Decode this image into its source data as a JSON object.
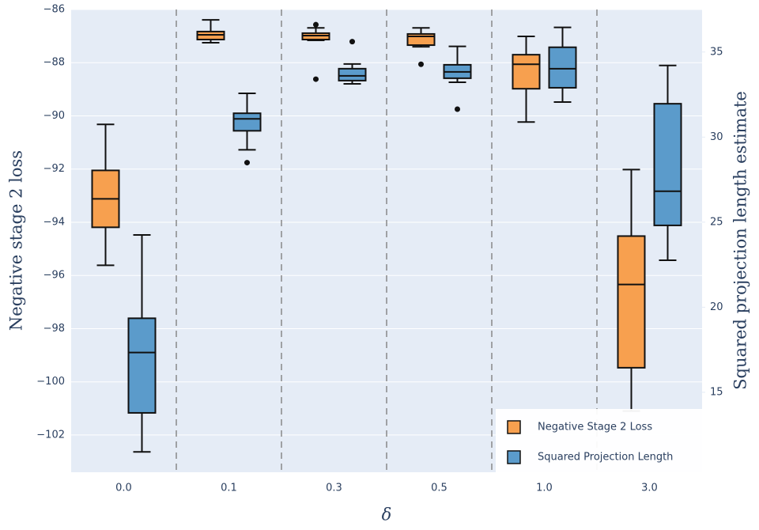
{
  "chart_data": {
    "type": "box",
    "x_label": "δ",
    "y_label": "Negative stage 2 loss",
    "y2_label": "Squared projection length estimate",
    "categories": [
      "0.0",
      "0.1",
      "0.3",
      "0.5",
      "1.0",
      "3.0"
    ],
    "ylim": [
      -103.4,
      -86
    ],
    "yticks": [
      {
        "value": -86,
        "label": "−86"
      },
      {
        "value": -88,
        "label": "−88"
      },
      {
        "value": -90,
        "label": "−90"
      },
      {
        "value": -92,
        "label": "−92"
      },
      {
        "value": -94,
        "label": "−94"
      },
      {
        "value": -96,
        "label": "−96"
      },
      {
        "value": -98,
        "label": "−98"
      },
      {
        "value": -100,
        "label": "−100"
      },
      {
        "value": -102,
        "label": "−102"
      }
    ],
    "y2lim": [
      10.3,
      37.5
    ],
    "y2ticks": [
      15,
      20,
      25,
      30,
      35
    ],
    "grid": true,
    "legend": "bottom-right",
    "series": [
      {
        "name": "Negative Stage 2 Loss",
        "color": "#f7a04f",
        "axis": "y",
        "min": [
          -95.62,
          -87.25,
          -87.16,
          -87.4,
          -90.23,
          -101.1
        ],
        "q1": [
          -94.19,
          -87.13,
          -87.13,
          -87.34,
          -88.98,
          -99.47
        ],
        "median": [
          -93.12,
          -86.95,
          -86.98,
          -87.01,
          -88.06,
          -96.34
        ],
        "q3": [
          -92.05,
          -86.83,
          -86.89,
          -86.92,
          -87.7,
          -94.52
        ],
        "max": [
          -90.32,
          -86.39,
          -86.69,
          -86.69,
          -87.01,
          -92.02
        ],
        "outliers": [
          [],
          [],
          [
            -86.57,
            -88.62
          ],
          [
            -88.06
          ],
          [],
          []
        ]
      },
      {
        "name": "Squared Projection Length",
        "color": "#5b9bcb",
        "axis": "y2",
        "min": [
          11.5,
          29.25,
          33.13,
          33.22,
          32.06,
          22.76
        ],
        "q1": [
          13.79,
          30.37,
          33.32,
          33.46,
          32.9,
          24.81
        ],
        "median": [
          17.34,
          31.07,
          33.6,
          33.83,
          34.02,
          26.82
        ],
        "q3": [
          19.35,
          31.4,
          34.02,
          34.25,
          35.28,
          31.96
        ],
        "max": [
          24.25,
          32.57,
          34.3,
          35.33,
          36.45,
          34.21
        ],
        "outliers": [
          [],
          [
            28.5
          ],
          [
            35.61
          ],
          [
            31.64
          ],
          [],
          []
        ]
      }
    ]
  }
}
